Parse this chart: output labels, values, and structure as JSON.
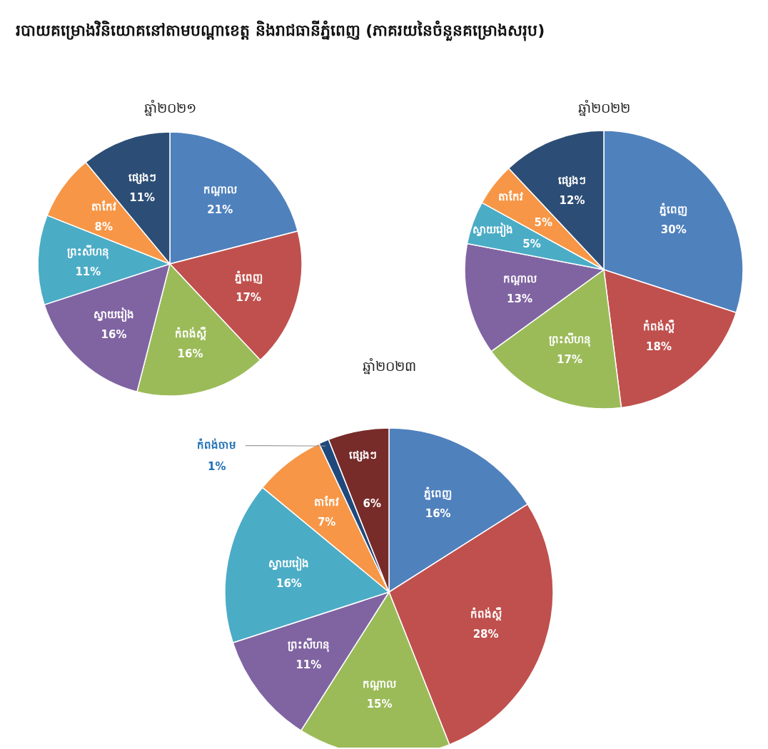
{
  "chart_data": [
    {
      "type": "pie",
      "title": "ឆ្នាំ២០២១",
      "annotations": [
        "របាយគម្រោងវិនិយោគនៅតាមបណ្ដាខេត្ត និងរាជធានីភ្នំពេញ (ភាគរយនៃចំនួនគម្រោងសរុប)"
      ],
      "categories": [
        "កណ្ដាល",
        "ភ្នំពេញ",
        "កំពង់ស្ពឺ",
        "ស្វាយរៀង",
        "ព្រះសីហនុ",
        "តាកែវ",
        "ផ្សេងៗ"
      ],
      "values": [
        21,
        17,
        16,
        16,
        11,
        8,
        11
      ],
      "value_labels": [
        "21%",
        "17%",
        "16%",
        "16%",
        "11%",
        "8%",
        "11%"
      ],
      "colors": [
        "#4f81bd",
        "#c0504d",
        "#9bbb59",
        "#8064a2",
        "#4bacc6",
        "#f79646",
        "#2c4d75"
      ]
    },
    {
      "type": "pie",
      "title": "ឆ្នាំ២០២២",
      "categories": [
        "ភ្នំពេញ",
        "កំពង់ស្ពឺ",
        "ព្រះសីហនុ",
        "កណ្ដាល",
        "ស្វាយរៀង",
        "តាកែវ",
        "ផ្សេងៗ"
      ],
      "values": [
        30,
        18,
        17,
        13,
        5,
        5,
        12
      ],
      "value_labels": [
        "30%",
        "18%",
        "17%",
        "13%",
        "5%",
        "5%",
        "12%"
      ],
      "colors": [
        "#4f81bd",
        "#c0504d",
        "#9bbb59",
        "#8064a2",
        "#4bacc6",
        "#f79646",
        "#2c4d75"
      ]
    },
    {
      "type": "pie",
      "title": "ឆ្នាំ២០២៣",
      "categories": [
        "ភ្នំពេញ",
        "កំពង់ស្ពឺ",
        "កណ្ដាល",
        "ព្រះសីហនុ",
        "ស្វាយរៀង",
        "តាកែវ",
        "កំពង់ចាម",
        "ផ្សេងៗ"
      ],
      "values": [
        16,
        28,
        15,
        11,
        16,
        7,
        1,
        6
      ],
      "value_labels": [
        "16%",
        "28%",
        "15%",
        "11%",
        "16%",
        "7%",
        "1%",
        "6%"
      ],
      "colors": [
        "#4f81bd",
        "#c0504d",
        "#9bbb59",
        "#8064a2",
        "#4bacc6",
        "#f79646",
        "#1f497d",
        "#772c2a"
      ]
    }
  ]
}
